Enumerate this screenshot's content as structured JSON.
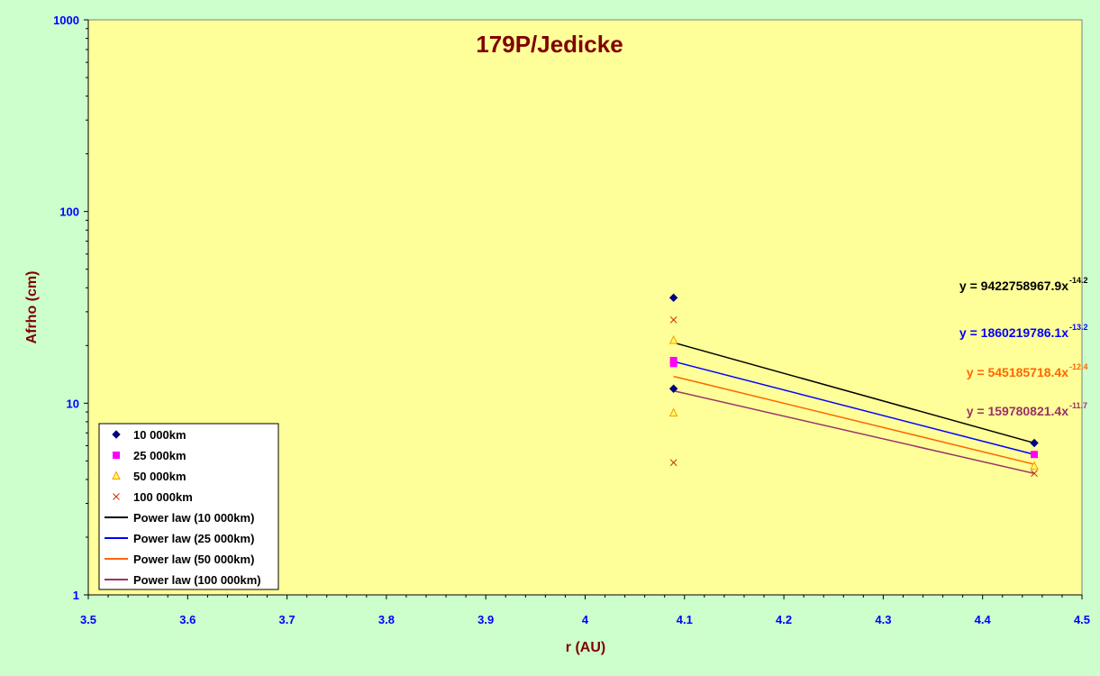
{
  "chart_data": {
    "type": "scatter",
    "title": "179P/Jedicke",
    "xlabel": "r (AU)",
    "ylabel": "Afrho (cm)",
    "xlim": [
      3.5,
      4.5
    ],
    "ylim": [
      1,
      1000
    ],
    "y_scale": "log",
    "x_ticks": [
      "3.5",
      "3.6",
      "3.7",
      "3.8",
      "3.9",
      "4",
      "4.1",
      "4.2",
      "4.3",
      "4.4",
      "4.5"
    ],
    "y_ticks": [
      "1",
      "10",
      "100",
      "1000"
    ],
    "grid": false,
    "legend_position": "bottom-left",
    "series": [
      {
        "name": "10 000km",
        "marker": "diamond",
        "color": "#000080",
        "points": [
          [
            4.089,
            35.5
          ],
          [
            4.089,
            11.9
          ],
          [
            4.452,
            6.2
          ]
        ]
      },
      {
        "name": "25 000km",
        "marker": "square",
        "color": "#ff00ff",
        "points": [
          [
            4.089,
            16.7
          ],
          [
            4.089,
            16.1
          ],
          [
            4.452,
            5.4
          ]
        ]
      },
      {
        "name": "50 000km",
        "marker": "triangle",
        "color": "#ff9900",
        "points": [
          [
            4.089,
            21.3
          ],
          [
            4.089,
            8.9
          ],
          [
            4.452,
            4.7
          ]
        ]
      },
      {
        "name": "100 000km",
        "marker": "x",
        "color": "#cc3300",
        "points": [
          [
            4.089,
            27.2
          ],
          [
            4.089,
            4.9
          ],
          [
            4.452,
            4.3
          ]
        ]
      }
    ],
    "trendlines": [
      {
        "name": "Power law (10 000km)",
        "color": "#000000",
        "x": [
          4.089,
          4.452
        ],
        "y": [
          20.7,
          6.2
        ],
        "equation": "y = 9422758967.9x",
        "exponent": "-14.2"
      },
      {
        "name": "Power law (25 000km)",
        "color": "#0000ff",
        "x": [
          4.089,
          4.452
        ],
        "y": [
          16.5,
          5.4
        ],
        "equation": "y = 1860219786.1x",
        "exponent": "-13.2"
      },
      {
        "name": "Power law (50 000km)",
        "color": "#ff6600",
        "x": [
          4.089,
          4.452
        ],
        "y": [
          13.8,
          4.8
        ],
        "equation": "y = 545185718.4x",
        "exponent": "-12.4"
      },
      {
        "name": "Power law (100 000km)",
        "color": "#993366",
        "x": [
          4.089,
          4.452
        ],
        "y": [
          11.6,
          4.3
        ],
        "equation": "y = 159780821.4x",
        "exponent": "-11.7"
      }
    ]
  }
}
